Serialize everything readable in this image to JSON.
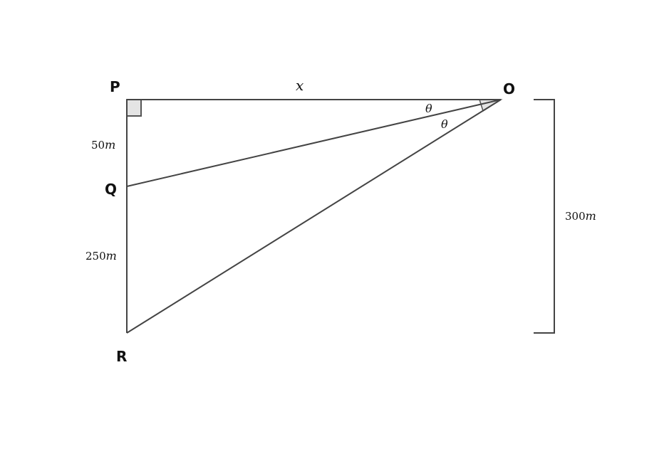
{
  "points": {
    "P": "P",
    "O": "O",
    "Q": "Q",
    "R": "R"
  },
  "labels": {
    "x": "x",
    "theta1": "θ",
    "theta2": "θ",
    "pq_num": "50",
    "pq_unit": "m",
    "qr_num": "250",
    "qr_unit": "m",
    "total_num": "300",
    "total_unit": "m"
  }
}
